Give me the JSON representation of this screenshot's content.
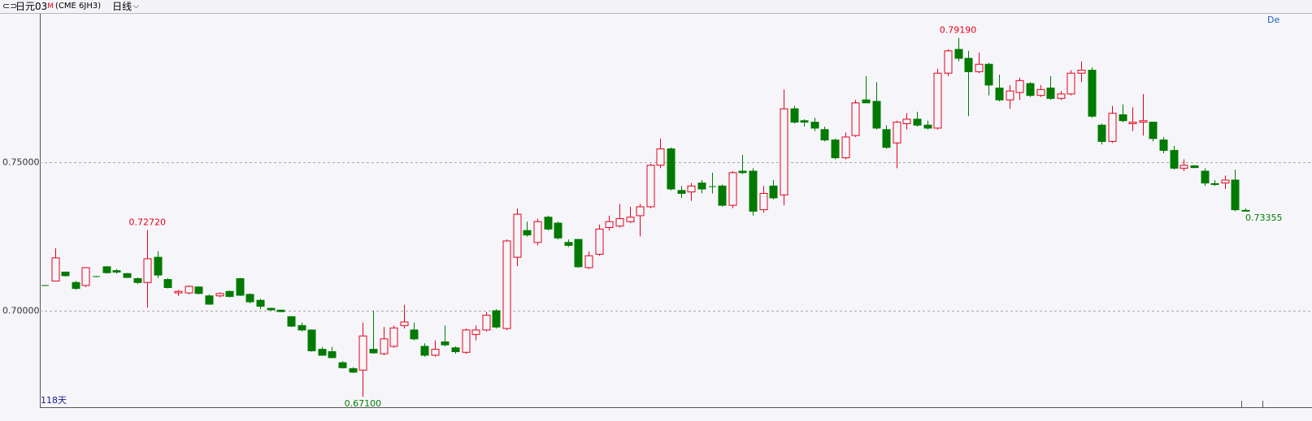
{
  "chart_data": {
    "type": "candlestick",
    "title": "日元03",
    "title_mark": "M",
    "symbol": "(CME 6JH3)",
    "period": "日线",
    "corner_text": "De",
    "count_label": "118天",
    "up_color": "#e8001c",
    "down_color": "#007a00",
    "ylim": [
      0.6675,
      0.8
    ],
    "yticks": [
      {
        "value": 0.7,
        "label": "0.70000"
      },
      {
        "value": 0.75,
        "label": "0.75000"
      }
    ],
    "grid": true,
    "annotations": [
      {
        "label": "0.72720",
        "value": 0.7272,
        "color": "#e8001c"
      },
      {
        "label": "0.79190",
        "value": 0.7919,
        "color": "#e8001c"
      },
      {
        "label": "0.67100",
        "value": 0.671,
        "color": "#007a00"
      },
      {
        "label": "0.73355",
        "value": 0.73355,
        "color": "#007a00"
      }
    ],
    "candles": [
      [
        0.7085,
        0.7087,
        0.7083,
        0.7085
      ],
      [
        0.71,
        0.721,
        0.71,
        0.7178
      ],
      [
        0.713,
        0.7132,
        0.7115,
        0.7118
      ],
      [
        0.7095,
        0.71,
        0.707,
        0.7075
      ],
      [
        0.7085,
        0.7145,
        0.708,
        0.7145
      ],
      [
        0.7115,
        0.7117,
        0.7113,
        0.7115
      ],
      [
        0.7148,
        0.715,
        0.7125,
        0.7128
      ],
      [
        0.7135,
        0.714,
        0.7125,
        0.713
      ],
      [
        0.7125,
        0.7127,
        0.711,
        0.7112
      ],
      [
        0.7108,
        0.7112,
        0.709,
        0.7095
      ],
      [
        0.7095,
        0.7272,
        0.701,
        0.7175
      ],
      [
        0.718,
        0.72,
        0.711,
        0.712
      ],
      [
        0.7105,
        0.711,
        0.7075,
        0.7078
      ],
      [
        0.706,
        0.707,
        0.705,
        0.7065
      ],
      [
        0.706,
        0.7085,
        0.7055,
        0.7082
      ],
      [
        0.708,
        0.7082,
        0.7055,
        0.7058
      ],
      [
        0.705,
        0.7055,
        0.702,
        0.7022
      ],
      [
        0.705,
        0.7062,
        0.7045,
        0.7058
      ],
      [
        0.7065,
        0.7068,
        0.7045,
        0.7048
      ],
      [
        0.7108,
        0.711,
        0.705,
        0.7052
      ],
      [
        0.7055,
        0.7058,
        0.7025,
        0.703
      ],
      [
        0.7035,
        0.704,
        0.7005,
        0.7015
      ],
      [
        0.7008,
        0.701,
        0.7,
        0.7003
      ],
      [
        0.7002,
        0.7003,
        0.6995,
        0.6997
      ],
      [
        0.698,
        0.6982,
        0.6945,
        0.6948
      ],
      [
        0.695,
        0.696,
        0.693,
        0.6935
      ],
      [
        0.6935,
        0.6937,
        0.6862,
        0.6865
      ],
      [
        0.687,
        0.6878,
        0.6848,
        0.685
      ],
      [
        0.6862,
        0.6878,
        0.684,
        0.6842
      ],
      [
        0.6825,
        0.683,
        0.6805,
        0.6808
      ],
      [
        0.6805,
        0.681,
        0.679,
        0.6793
      ],
      [
        0.68,
        0.696,
        0.671,
        0.6915
      ],
      [
        0.687,
        0.7,
        0.6855,
        0.6858
      ],
      [
        0.6855,
        0.6945,
        0.685,
        0.6905
      ],
      [
        0.688,
        0.695,
        0.6875,
        0.6942
      ],
      [
        0.695,
        0.702,
        0.694,
        0.6962
      ],
      [
        0.6935,
        0.696,
        0.69,
        0.6905
      ],
      [
        0.688,
        0.689,
        0.6845,
        0.685
      ],
      [
        0.685,
        0.69,
        0.6845,
        0.687
      ],
      [
        0.6895,
        0.695,
        0.688,
        0.6885
      ],
      [
        0.6875,
        0.688,
        0.6855,
        0.6862
      ],
      [
        0.686,
        0.694,
        0.6855,
        0.6935
      ],
      [
        0.692,
        0.695,
        0.69,
        0.6935
      ],
      [
        0.6935,
        0.6995,
        0.693,
        0.6985
      ],
      [
        0.7,
        0.7005,
        0.694,
        0.6945
      ],
      [
        0.694,
        0.724,
        0.6935,
        0.7235
      ],
      [
        0.718,
        0.7345,
        0.715,
        0.7325
      ],
      [
        0.727,
        0.73,
        0.725,
        0.7255
      ],
      [
        0.723,
        0.731,
        0.722,
        0.73
      ],
      [
        0.7315,
        0.732,
        0.727,
        0.7275
      ],
      [
        0.7295,
        0.73,
        0.724,
        0.7245
      ],
      [
        0.723,
        0.724,
        0.7215,
        0.722
      ],
      [
        0.724,
        0.7242,
        0.7145,
        0.7148
      ],
      [
        0.7145,
        0.72,
        0.714,
        0.7185
      ],
      [
        0.719,
        0.729,
        0.7185,
        0.7275
      ],
      [
        0.728,
        0.732,
        0.727,
        0.73
      ],
      [
        0.7285,
        0.736,
        0.728,
        0.731
      ],
      [
        0.73,
        0.735,
        0.7295,
        0.7315
      ],
      [
        0.732,
        0.736,
        0.725,
        0.735
      ],
      [
        0.735,
        0.7495,
        0.7345,
        0.749
      ],
      [
        0.749,
        0.758,
        0.748,
        0.7545
      ],
      [
        0.7545,
        0.755,
        0.7405,
        0.741
      ],
      [
        0.7405,
        0.742,
        0.738,
        0.7395
      ],
      [
        0.74,
        0.743,
        0.737,
        0.742
      ],
      [
        0.743,
        0.744,
        0.7395,
        0.741
      ],
      [
        0.7418,
        0.7465,
        0.7395,
        0.7418
      ],
      [
        0.742,
        0.7425,
        0.735,
        0.7355
      ],
      [
        0.7355,
        0.747,
        0.7345,
        0.7465
      ],
      [
        0.747,
        0.7525,
        0.746,
        0.7465
      ],
      [
        0.747,
        0.748,
        0.732,
        0.7335
      ],
      [
        0.734,
        0.742,
        0.733,
        0.7395
      ],
      [
        0.742,
        0.744,
        0.7375,
        0.738
      ],
      [
        0.739,
        0.7745,
        0.7355,
        0.768
      ],
      [
        0.768,
        0.769,
        0.763,
        0.7635
      ],
      [
        0.764,
        0.7645,
        0.762,
        0.7635
      ],
      [
        0.7635,
        0.765,
        0.7605,
        0.7615
      ],
      [
        0.761,
        0.762,
        0.757,
        0.7575
      ],
      [
        0.7575,
        0.758,
        0.751,
        0.7515
      ],
      [
        0.7515,
        0.76,
        0.751,
        0.7585
      ],
      [
        0.759,
        0.771,
        0.7585,
        0.77
      ],
      [
        0.771,
        0.779,
        0.77,
        0.77
      ],
      [
        0.7705,
        0.777,
        0.761,
        0.7615
      ],
      [
        0.761,
        0.7625,
        0.7545,
        0.755
      ],
      [
        0.7565,
        0.764,
        0.748,
        0.7635
      ],
      [
        0.763,
        0.7665,
        0.761,
        0.7645
      ],
      [
        0.7645,
        0.767,
        0.762,
        0.7625
      ],
      [
        0.7625,
        0.764,
        0.761,
        0.7615
      ],
      [
        0.7615,
        0.7815,
        0.761,
        0.78
      ],
      [
        0.78,
        0.788,
        0.779,
        0.7875
      ],
      [
        0.788,
        0.7919,
        0.784,
        0.785
      ],
      [
        0.785,
        0.7875,
        0.7655,
        0.7805
      ],
      [
        0.7805,
        0.787,
        0.78,
        0.783
      ],
      [
        0.783,
        0.7835,
        0.7725,
        0.776
      ],
      [
        0.775,
        0.7795,
        0.7705,
        0.771
      ],
      [
        0.771,
        0.776,
        0.768,
        0.774
      ],
      [
        0.7735,
        0.7785,
        0.771,
        0.7775
      ],
      [
        0.7765,
        0.777,
        0.772,
        0.7725
      ],
      [
        0.7725,
        0.776,
        0.772,
        0.7745
      ],
      [
        0.775,
        0.779,
        0.771,
        0.7715
      ],
      [
        0.7715,
        0.774,
        0.771,
        0.773
      ],
      [
        0.773,
        0.781,
        0.7725,
        0.78
      ],
      [
        0.78,
        0.784,
        0.777,
        0.781
      ],
      [
        0.781,
        0.782,
        0.765,
        0.7655
      ],
      [
        0.7625,
        0.763,
        0.756,
        0.757
      ],
      [
        0.757,
        0.769,
        0.7565,
        0.7665
      ],
      [
        0.766,
        0.7695,
        0.7635,
        0.764
      ],
      [
        0.763,
        0.7685,
        0.7605,
        0.7635
      ],
      [
        0.7635,
        0.773,
        0.759,
        0.764
      ],
      [
        0.7635,
        0.7636,
        0.757,
        0.758
      ],
      [
        0.7575,
        0.7585,
        0.753,
        0.754
      ],
      [
        0.754,
        0.7555,
        0.7475,
        0.748
      ],
      [
        0.748,
        0.751,
        0.747,
        0.749
      ],
      [
        0.7488,
        0.749,
        0.748,
        0.7482
      ],
      [
        0.747,
        0.748,
        0.742,
        0.743
      ],
      [
        0.7428,
        0.744,
        0.742,
        0.7425
      ],
      [
        0.743,
        0.7455,
        0.741,
        0.744
      ],
      [
        0.744,
        0.7475,
        0.7335,
        0.734
      ],
      [
        0.7338,
        0.7345,
        0.7335,
        0.73355
      ]
    ]
  }
}
